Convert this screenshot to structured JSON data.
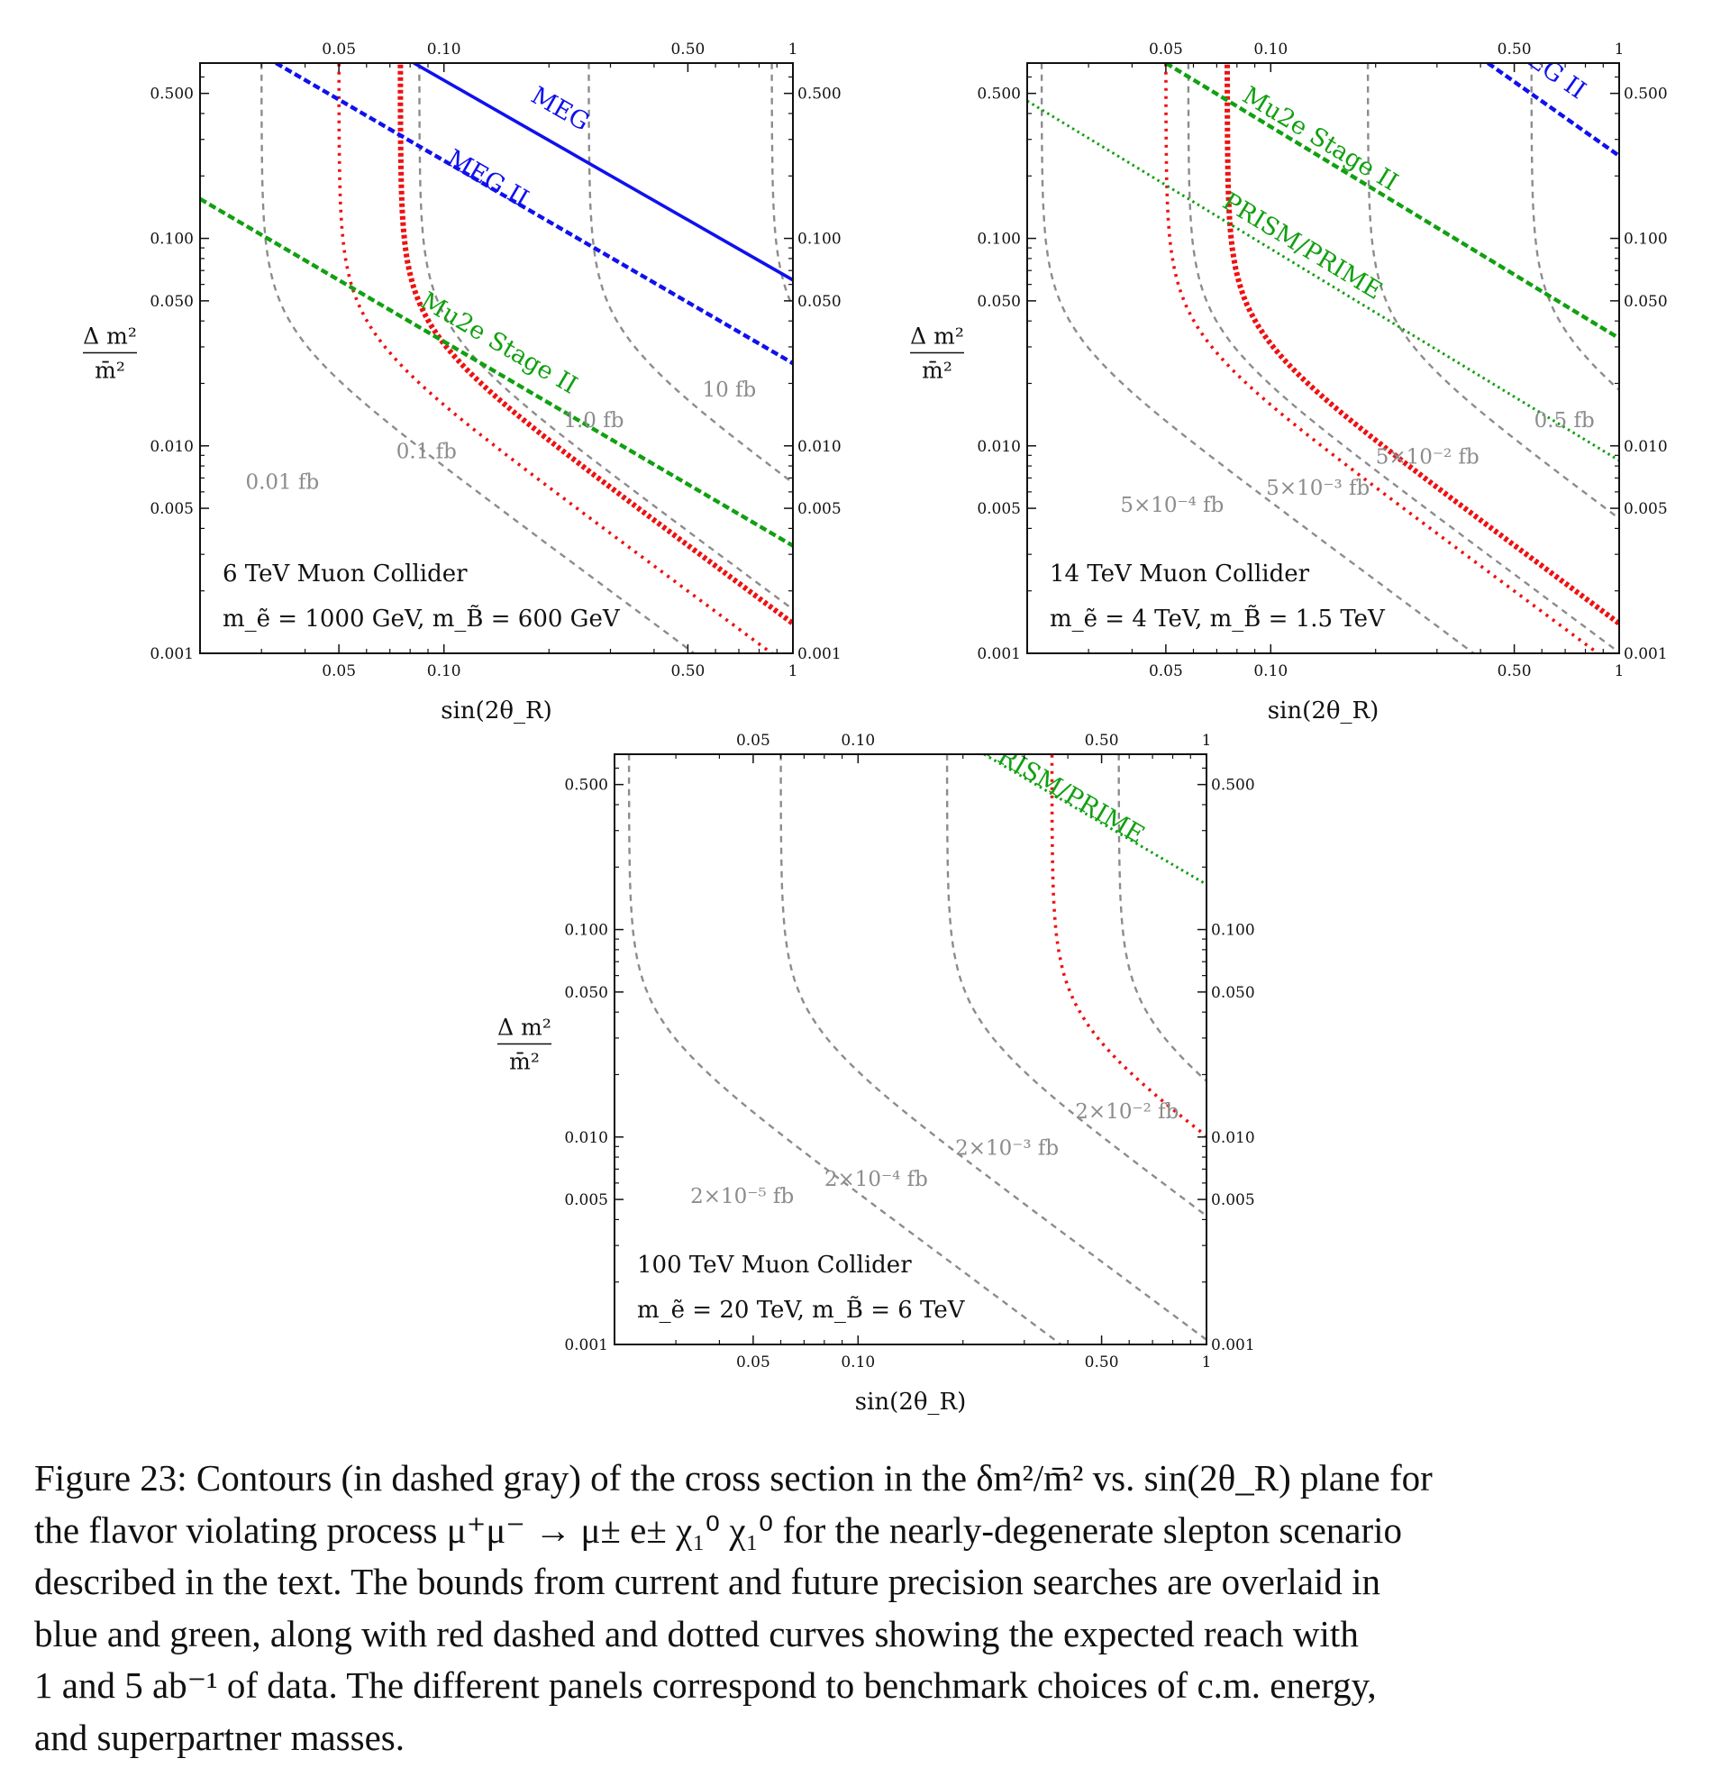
{
  "chart_data": [
    {
      "type": "line",
      "xlabel": "sin(2θ_R)",
      "ylabel": {
        "num": "Δ m²",
        "den": "m̄²"
      },
      "xscale": "log",
      "yscale": "log",
      "xlim": [
        0.02,
        1
      ],
      "ylim": [
        0.001,
        0.7
      ],
      "xticks": [
        0.05,
        0.1,
        0.5,
        1
      ],
      "xtick_labels": [
        "0.05",
        "0.10",
        "0.50",
        "1"
      ],
      "yticks": [
        0.001,
        0.005,
        0.01,
        0.05,
        0.1,
        0.5
      ],
      "ytick_labels": [
        "0.001",
        "0.005",
        "0.010",
        "0.050",
        "0.100",
        "0.500"
      ],
      "panel_text": [
        "6 TeV Muon Collider",
        "m_ẽ = 1000 GeV, m_B̃ = 600 GeV"
      ],
      "contours": [
        {
          "label": "0.01 fb",
          "x0": 0.03,
          "label_at": [
            0.027,
            0.0062
          ]
        },
        {
          "label": "0.1 fb",
          "x0": 0.085,
          "label_at": [
            0.073,
            0.0087
          ]
        },
        {
          "label": "1.0 fb",
          "x0": 0.26,
          "label_at": [
            0.22,
            0.0123
          ]
        },
        {
          "label": "10 fb",
          "x0": 0.87,
          "label_at": [
            0.55,
            0.0173
          ]
        }
      ],
      "reach": [
        {
          "name": "1 ab⁻¹",
          "style": "dotted",
          "x0": 0.05
        },
        {
          "name": "5 ab⁻¹",
          "style": "dotted-thick",
          "x0": 0.075
        }
      ],
      "bounds": [
        {
          "name": "MEG",
          "color": "#1010ee",
          "style": "solid",
          "points": [
            [
              0.082,
              0.7
            ],
            [
              1,
              0.063
            ]
          ],
          "label_at": [
            0.21,
            0.39
          ]
        },
        {
          "name": "MEG II",
          "color": "#1010ee",
          "style": "dashed",
          "points": [
            [
              0.033,
              0.7
            ],
            [
              1,
              0.025
            ]
          ],
          "label_at": [
            0.13,
            0.18
          ]
        },
        {
          "name": "Mu2e Stage II",
          "color": "#11a011",
          "style": "dashed",
          "points": [
            [
              0.02,
              0.155
            ],
            [
              1,
              0.0033
            ]
          ],
          "label_at": [
            0.14,
            0.029
          ]
        }
      ]
    },
    {
      "type": "line",
      "xlabel": "sin(2θ_R)",
      "ylabel": {
        "num": "Δ m²",
        "den": "m̄²"
      },
      "xscale": "log",
      "yscale": "log",
      "xlim": [
        0.02,
        1
      ],
      "ylim": [
        0.001,
        0.7
      ],
      "xticks": [
        0.05,
        0.1,
        0.5,
        1
      ],
      "xtick_labels": [
        "0.05",
        "0.10",
        "0.50",
        "1"
      ],
      "yticks": [
        0.001,
        0.005,
        0.01,
        0.05,
        0.1,
        0.5
      ],
      "ytick_labels": [
        "0.001",
        "0.005",
        "0.010",
        "0.050",
        "0.100",
        "0.500"
      ],
      "panel_text": [
        "14 TeV Muon Collider",
        "m_ẽ = 4 TeV, m_B̃ = 1.5 TeV"
      ],
      "contours": [
        {
          "label": "5×10⁻⁴ fb",
          "x0": 0.022,
          "label_at": [
            0.037,
            0.0048
          ]
        },
        {
          "label": "5×10⁻³ fb",
          "x0": 0.058,
          "label_at": [
            0.097,
            0.0058
          ]
        },
        {
          "label": "5×10⁻² fb",
          "x0": 0.19,
          "label_at": [
            0.2,
            0.0082
          ]
        },
        {
          "label": "0.5 fb",
          "x0": 0.56,
          "label_at": [
            0.57,
            0.0123
          ]
        }
      ],
      "reach": [
        {
          "name": "1 ab⁻¹",
          "style": "dotted",
          "x0": 0.05
        },
        {
          "name": "5 ab⁻¹",
          "style": "dotted-thick",
          "x0": 0.075
        }
      ],
      "bounds": [
        {
          "name": "MEG II",
          "color": "#1010ee",
          "style": "dashed",
          "points": [
            [
              0.42,
              0.7
            ],
            [
              1,
              0.25
            ]
          ],
          "label_at": [
            0.6,
            0.62
          ]
        },
        {
          "name": "Mu2e Stage II",
          "color": "#11a011",
          "style": "dashed",
          "points": [
            [
              0.05,
              0.7
            ],
            [
              1,
              0.033
            ]
          ],
          "label_at": [
            0.135,
            0.28
          ]
        },
        {
          "name": "PRISM/PRIME",
          "color": "#11a011",
          "style": "dotted",
          "points": [
            [
              0.02,
              0.46
            ],
            [
              1,
              0.0085
            ]
          ],
          "label_at": [
            0.12,
            0.085
          ]
        }
      ]
    },
    {
      "type": "line",
      "xlabel": "sin(2θ_R)",
      "ylabel": {
        "num": "Δ m²",
        "den": "m̄²"
      },
      "xscale": "log",
      "yscale": "log",
      "xlim": [
        0.02,
        1
      ],
      "ylim": [
        0.001,
        0.7
      ],
      "xticks": [
        0.05,
        0.1,
        0.5,
        1
      ],
      "xtick_labels": [
        "0.05",
        "0.10",
        "0.50",
        "1"
      ],
      "yticks": [
        0.001,
        0.005,
        0.01,
        0.05,
        0.1,
        0.5
      ],
      "ytick_labels": [
        "0.001",
        "0.005",
        "0.010",
        "0.050",
        "0.100",
        "0.500"
      ],
      "panel_text": [
        "100 TeV Muon Collider",
        "m_ẽ = 20 TeV, m_B̃ = 6 TeV"
      ],
      "contours": [
        {
          "label": "2×10⁻⁵ fb",
          "x0": 0.022,
          "label_at": [
            0.033,
            0.0048
          ]
        },
        {
          "label": "2×10⁻⁴ fb",
          "x0": 0.06,
          "label_at": [
            0.08,
            0.0058
          ]
        },
        {
          "label": "2×10⁻³ fb",
          "x0": 0.18,
          "label_at": [
            0.19,
            0.0082
          ]
        },
        {
          "label": "2×10⁻² fb",
          "x0": 0.56,
          "label_at": [
            0.42,
            0.0123
          ]
        }
      ],
      "reach": [
        {
          "name": "1 ab⁻¹",
          "style": "dotted",
          "x0": 0.36
        }
      ],
      "bounds": [
        {
          "name": "PRISM/PRIME",
          "color": "#11a011",
          "style": "dotted",
          "points": [
            [
              0.23,
              0.7
            ],
            [
              1,
              0.165
            ]
          ],
          "label_at": [
            0.38,
            0.43
          ]
        }
      ]
    }
  ],
  "caption": {
    "lines": [
      "Figure 23: Contours (in dashed gray) of the cross section in the δm²/m̄² vs. sin(2θ_R) plane for",
      "the flavor violating process μ⁺μ⁻ → μ± e± χ₁⁰ χ₁⁰ for the nearly-degenerate slepton scenario",
      "described in the text. The bounds from current and future precision searches are overlaid in",
      "blue and green, along with red dashed and dotted curves showing the expected reach with",
      "1 and 5 ab⁻¹ of data. The different panels correspond to benchmark choices of c.m. energy,",
      "and superpartner masses."
    ]
  }
}
